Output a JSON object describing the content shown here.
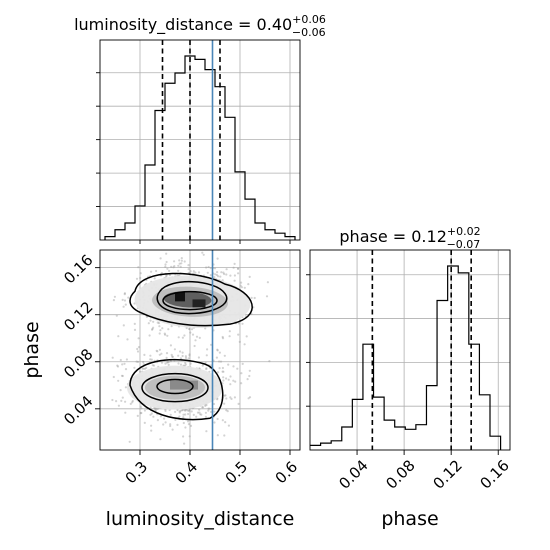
{
  "panels": {
    "lum_title": {
      "param": "luminosity_distance",
      "eq": " = 0.40",
      "sup": "+0.06",
      "sub": "−0.06"
    },
    "phase_title": {
      "param": "phase",
      "eq": " = 0.12",
      "sup": "+0.02",
      "sub": "−0.07"
    },
    "xlabel_left": "luminosity_distance",
    "xlabel_right": "phase",
    "ylabel": "phase"
  },
  "colors": {
    "truth": "#4a86b8",
    "hist": "#000000",
    "grid": "#b0b0b0",
    "points": "#9e9e9e"
  },
  "chart_data": [
    {
      "type": "histogram",
      "panel": "luminosity_distance marginal",
      "xlim": [
        0.22,
        0.62
      ],
      "bins": [
        0.23,
        0.25,
        0.27,
        0.29,
        0.31,
        0.33,
        0.35,
        0.37,
        0.39,
        0.41,
        0.43,
        0.45,
        0.47,
        0.49,
        0.51,
        0.53,
        0.55,
        0.57,
        0.59,
        0.61
      ],
      "counts": [
        1,
        3,
        5,
        10,
        22,
        38,
        46,
        49,
        54,
        53,
        50,
        45,
        36,
        20,
        12,
        5,
        3,
        2,
        1
      ],
      "quantiles": [
        0.345,
        0.4,
        0.46
      ],
      "truth": 0.445
    },
    {
      "type": "histogram",
      "panel": "phase marginal",
      "xlim": [
        0.0,
        0.17
      ],
      "bins": [
        0.0,
        0.009,
        0.018,
        0.027,
        0.036,
        0.045,
        0.054,
        0.063,
        0.072,
        0.081,
        0.09,
        0.099,
        0.108,
        0.117,
        0.126,
        0.135,
        0.144,
        0.153,
        0.162
      ],
      "counts": [
        2,
        3,
        4,
        10,
        22,
        46,
        23,
        13,
        10,
        9,
        11,
        28,
        65,
        80,
        77,
        46,
        24,
        6
      ],
      "quantiles": [
        0.053,
        0.12,
        0.137
      ],
      "truth": null
    },
    {
      "type": "scatter_contour",
      "panel": "luminosity_distance vs phase",
      "xlim": [
        0.22,
        0.62
      ],
      "ylim": [
        0.005,
        0.175
      ],
      "xticks": [
        "0.3",
        "0.4",
        "0.5",
        "0.6"
      ],
      "yticks": [
        "0.04",
        "0.08",
        "0.12",
        "0.16"
      ],
      "modes": [
        {
          "x": 0.4,
          "y": 0.132,
          "sx": 0.05,
          "sy": 0.012,
          "weight": 0.55
        },
        {
          "x": 0.37,
          "y": 0.058,
          "sx": 0.05,
          "sy": 0.012,
          "weight": 0.45
        }
      ],
      "truth_x": 0.445
    }
  ],
  "axes_ticks": {
    "lum_x": [
      "0.3",
      "0.4",
      "0.5",
      "0.6"
    ],
    "phase_x": [
      "0.04",
      "0.08",
      "0.12",
      "0.16"
    ],
    "phase_y": [
      "0.04",
      "0.08",
      "0.12",
      "0.16"
    ]
  }
}
